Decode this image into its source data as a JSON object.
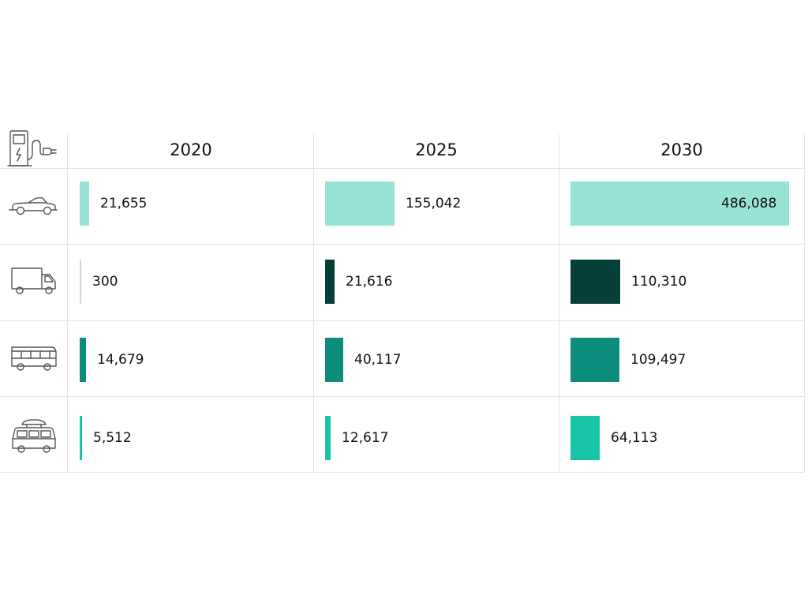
{
  "chart_data": {
    "type": "table",
    "columns": [
      "2020",
      "2025",
      "2030"
    ],
    "header_icon": "ev-charger-icon",
    "rows": [
      {
        "icon": "car-icon",
        "color": "#98e3d6",
        "values": [
          21655,
          155042,
          486088
        ],
        "labels": [
          "21,655",
          "155,042",
          "486,088"
        ]
      },
      {
        "icon": "truck-icon",
        "color": "#053f37",
        "values": [
          300,
          21616,
          110310
        ],
        "labels": [
          "300",
          "21,616",
          "110,310"
        ]
      },
      {
        "icon": "bus-icon",
        "color": "#0c8d7b",
        "values": [
          14679,
          40117,
          109497
        ],
        "labels": [
          "14,679",
          "40,117",
          "109,497"
        ]
      },
      {
        "icon": "camper-van-icon",
        "color": "#18c4a6",
        "values": [
          5512,
          12617,
          64113
        ],
        "labels": [
          "5,512",
          "12,617",
          "64,113"
        ]
      }
    ]
  }
}
